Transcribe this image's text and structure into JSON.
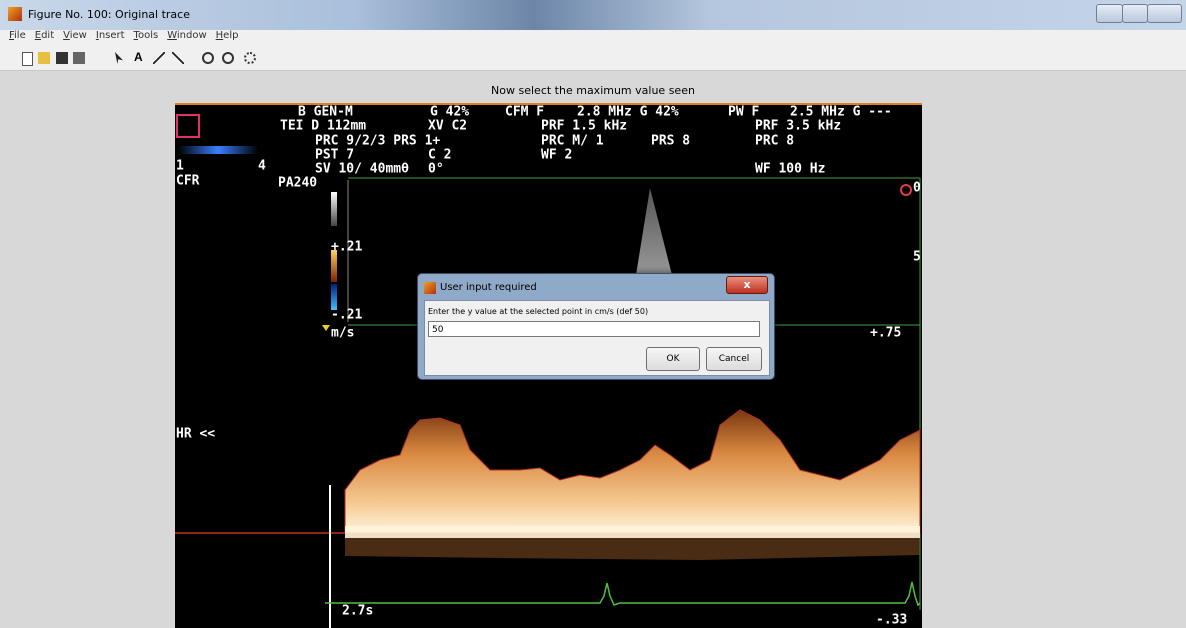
{
  "window": {
    "title": "Figure No. 100: Original trace"
  },
  "menu": [
    "File",
    "Edit",
    "View",
    "Insert",
    "Tools",
    "Window",
    "Help"
  ],
  "figure": {
    "title": "Now select the maximum value seen"
  },
  "ultrasound": {
    "labels": [
      "B GEN-M",
      "G 42%",
      "CFM F",
      "2.8 MHz G 42%",
      "PW F",
      "2.5 MHz G ---",
      "TEI D 112mm",
      "XV C2",
      "PRF 1.5 kHz",
      "PRF 3.5 kHz",
      "PRC 9/2/3 PRS 1+",
      "PRC M/ 1",
      "PRS 8",
      "PRC 8",
      "PST 7",
      "C 2",
      "WF 2",
      "SV 10/ 40mmθ",
      "0°",
      "WF 100 Hz",
      "1",
      "4",
      "CFR",
      "PA240",
      "+.21",
      "-.21",
      "m/s",
      "+.75",
      "HR <<",
      "2.7s",
      "-.33",
      "5",
      "0"
    ]
  },
  "dialog": {
    "title": "User input required",
    "prompt": "Enter the y value at the selected point in cm/s (def 50)",
    "input": "50",
    "buttons": [
      "OK",
      "Cancel"
    ]
  }
}
